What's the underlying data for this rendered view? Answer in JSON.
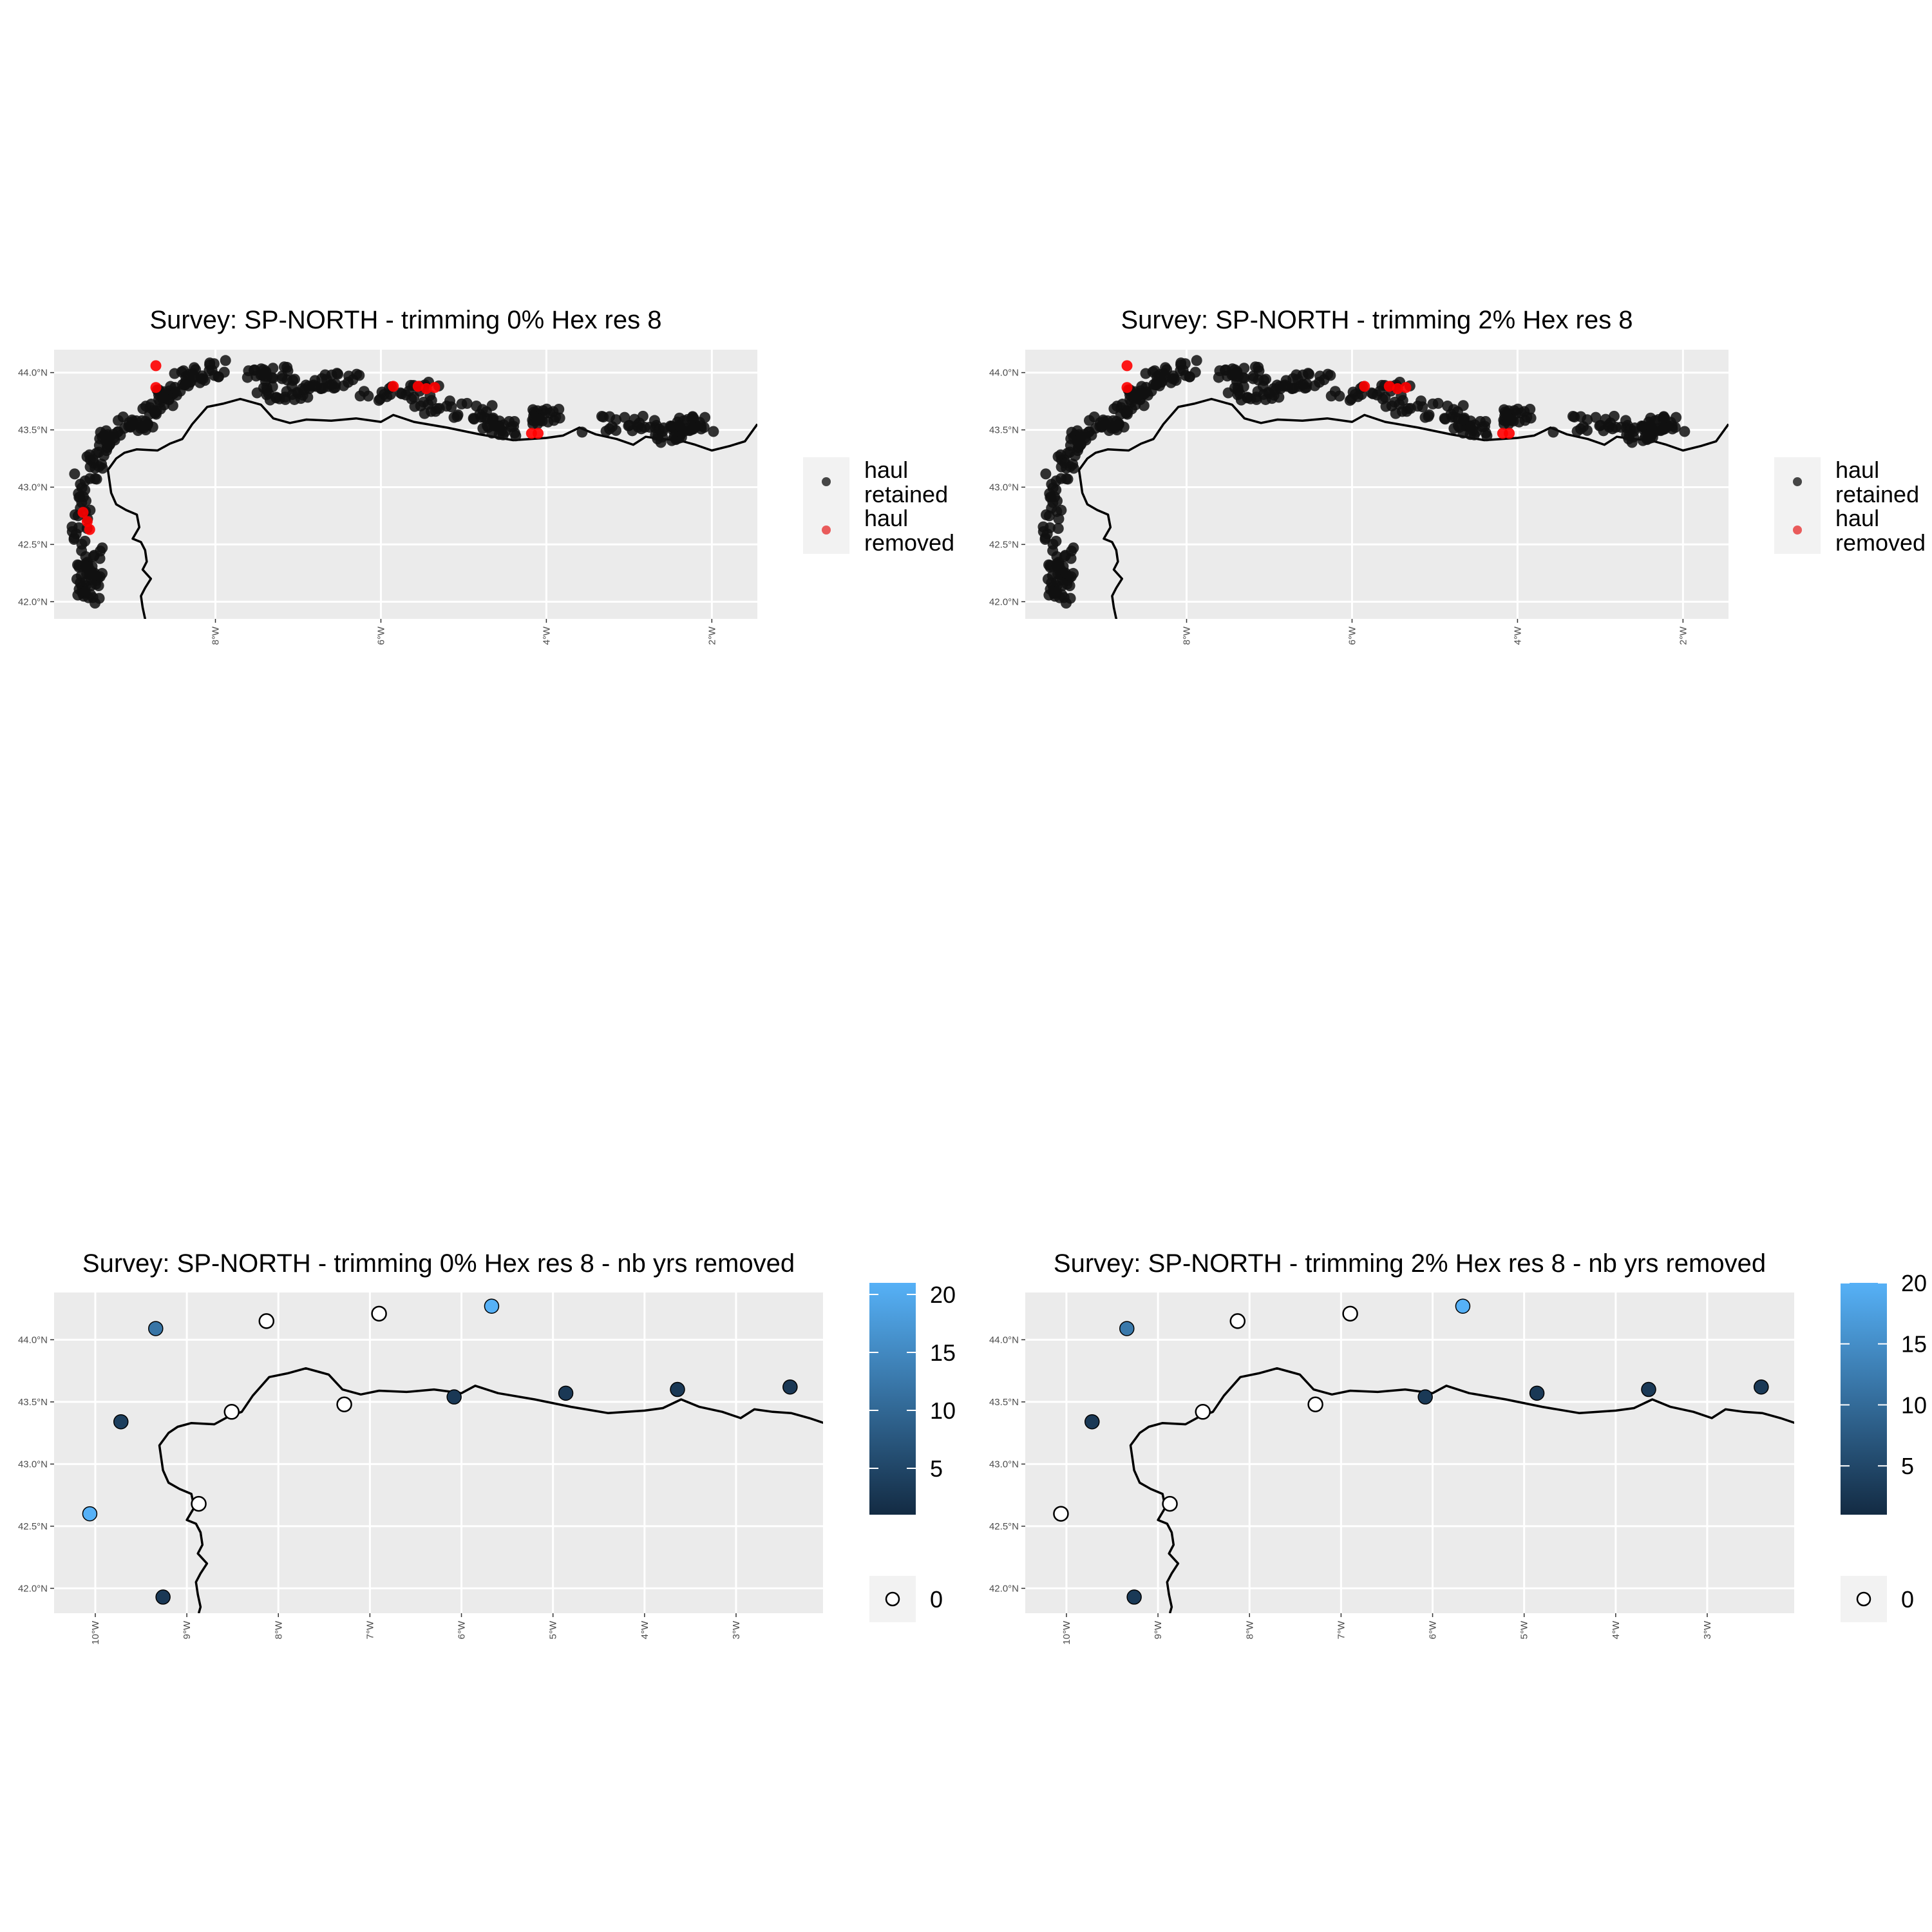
{
  "figure": {
    "panels": [
      {
        "title": "Survey: SP-NORTH - trimming 0% Hex res 8",
        "kind": "hauls",
        "xlim": [
          -9.95,
          -1.45
        ],
        "ylim": [
          41.85,
          44.2
        ],
        "x_ticks": [
          {
            "value": -8,
            "label": "8°W"
          },
          {
            "value": -6,
            "label": "6°W"
          },
          {
            "value": -4,
            "label": "4°W"
          },
          {
            "value": -2,
            "label": "2°W"
          }
        ],
        "y_ticks": [
          {
            "value": 44.0,
            "label": "44.0°N"
          },
          {
            "value": 43.5,
            "label": "43.5°N"
          },
          {
            "value": 43.0,
            "label": "43.0°N"
          },
          {
            "value": 42.5,
            "label": "42.5°N"
          },
          {
            "value": 42.0,
            "label": "42.0°N"
          }
        ],
        "legend": {
          "entries": [
            {
              "label_lines": [
                "haul",
                "retained"
              ],
              "color": "#333333"
            },
            {
              "label_lines": [
                "haul",
                "removed"
              ],
              "color": "#e84a4a"
            }
          ]
        },
        "removed_points": [
          [
            -8.72,
            44.06
          ],
          [
            -8.72,
            43.87
          ],
          [
            -5.85,
            43.88
          ],
          [
            -5.55,
            43.88
          ],
          [
            -5.45,
            43.86
          ],
          [
            -5.35,
            43.87
          ],
          [
            -9.6,
            42.78
          ],
          [
            -9.55,
            42.7
          ],
          [
            -9.52,
            42.63
          ],
          [
            -4.1,
            43.47
          ]
        ],
        "edge_removed": [
          [
            -4.18,
            43.47
          ]
        ]
      },
      {
        "title": "Survey: SP-NORTH - trimming 2% Hex res 8",
        "kind": "hauls",
        "xlim": [
          -9.95,
          -1.45
        ],
        "ylim": [
          41.85,
          44.2
        ],
        "x_ticks": [
          {
            "value": -8,
            "label": "8°W"
          },
          {
            "value": -6,
            "label": "6°W"
          },
          {
            "value": -4,
            "label": "4°W"
          },
          {
            "value": -2,
            "label": "2°W"
          }
        ],
        "y_ticks": [
          {
            "value": 44.0,
            "label": "44.0°N"
          },
          {
            "value": 43.5,
            "label": "43.5°N"
          },
          {
            "value": 43.0,
            "label": "43.0°N"
          },
          {
            "value": 42.5,
            "label": "42.5°N"
          },
          {
            "value": 42.0,
            "label": "42.0°N"
          }
        ],
        "legend": {
          "entries": [
            {
              "label_lines": [
                "haul",
                "retained"
              ],
              "color": "#333333"
            },
            {
              "label_lines": [
                "haul",
                "removed"
              ],
              "color": "#e84a4a"
            }
          ]
        },
        "removed_points": [
          [
            -8.72,
            44.06
          ],
          [
            -8.72,
            43.87
          ],
          [
            -5.85,
            43.88
          ],
          [
            -5.55,
            43.88
          ],
          [
            -5.45,
            43.86
          ],
          [
            -5.35,
            43.87
          ],
          [
            -4.1,
            43.47
          ]
        ],
        "edge_removed": [
          [
            -4.18,
            43.47
          ]
        ]
      },
      {
        "title": "Survey: SP-NORTH - trimming 0% Hex res 8 - nb yrs removed",
        "kind": "hex",
        "xlim": [
          -10.45,
          -2.05
        ],
        "ylim": [
          41.8,
          44.38
        ],
        "x_ticks": [
          {
            "value": -10,
            "label": "10°W"
          },
          {
            "value": -9,
            "label": "9°W"
          },
          {
            "value": -8,
            "label": "8°W"
          },
          {
            "value": -7,
            "label": "7°W"
          },
          {
            "value": -6,
            "label": "6°W"
          },
          {
            "value": -5,
            "label": "5°W"
          },
          {
            "value": -4,
            "label": "4°W"
          },
          {
            "value": -3,
            "label": "3°W"
          }
        ],
        "y_ticks": [
          {
            "value": 44.0,
            "label": "44.0°N"
          },
          {
            "value": 43.5,
            "label": "43.5°N"
          },
          {
            "value": 43.0,
            "label": "43.0°N"
          },
          {
            "value": 42.5,
            "label": "42.5°N"
          },
          {
            "value": 42.0,
            "label": "42.0°N"
          }
        ],
        "colorbar": {
          "range": [
            1,
            21
          ],
          "ticks": [
            {
              "value": 5,
              "label": "5"
            },
            {
              "value": 10,
              "label": "10"
            },
            {
              "value": 15,
              "label": "15"
            },
            {
              "value": 20,
              "label": "20"
            }
          ],
          "zero_label": "0",
          "color_low": "#132b43",
          "color_high": "#56b1f7"
        },
        "hexes": [
          {
            "lon": -9.34,
            "lat": 44.09,
            "n": 12
          },
          {
            "lon": -8.13,
            "lat": 44.15,
            "n": 0
          },
          {
            "lon": -6.9,
            "lat": 44.21,
            "n": 0
          },
          {
            "lon": -5.67,
            "lat": 44.27,
            "n": 21
          },
          {
            "lon": -9.72,
            "lat": 43.34,
            "n": 4
          },
          {
            "lon": -8.51,
            "lat": 43.42,
            "n": 0
          },
          {
            "lon": -7.28,
            "lat": 43.48,
            "n": 0
          },
          {
            "lon": -6.08,
            "lat": 43.54,
            "n": 3
          },
          {
            "lon": -4.86,
            "lat": 43.57,
            "n": 3
          },
          {
            "lon": -3.64,
            "lat": 43.6,
            "n": 3
          },
          {
            "lon": -2.41,
            "lat": 43.62,
            "n": 3
          },
          {
            "lon": -10.06,
            "lat": 42.6,
            "n": 21
          },
          {
            "lon": -8.87,
            "lat": 42.68,
            "n": 0
          },
          {
            "lon": -9.26,
            "lat": 41.93,
            "n": 3
          }
        ]
      },
      {
        "title": "Survey: SP-NORTH - trimming 2% Hex res 8 - nb yrs removed",
        "kind": "hex",
        "xlim": [
          -10.45,
          -2.05
        ],
        "ylim": [
          41.8,
          44.38
        ],
        "x_ticks": [
          {
            "value": -10,
            "label": "10°W"
          },
          {
            "value": -9,
            "label": "9°W"
          },
          {
            "value": -8,
            "label": "8°W"
          },
          {
            "value": -7,
            "label": "7°W"
          },
          {
            "value": -6,
            "label": "6°W"
          },
          {
            "value": -5,
            "label": "5°W"
          },
          {
            "value": -4,
            "label": "4°W"
          },
          {
            "value": -3,
            "label": "3°W"
          }
        ],
        "y_ticks": [
          {
            "value": 44.0,
            "label": "44.0°N"
          },
          {
            "value": 43.5,
            "label": "43.5°N"
          },
          {
            "value": 43.0,
            "label": "43.0°N"
          },
          {
            "value": 42.5,
            "label": "42.5°N"
          },
          {
            "value": 42.0,
            "label": "42.0°N"
          }
        ],
        "colorbar": {
          "range": [
            1,
            20
          ],
          "ticks": [
            {
              "value": 5,
              "label": "5"
            },
            {
              "value": 10,
              "label": "10"
            },
            {
              "value": 15,
              "label": "15"
            },
            {
              "value": 20,
              "label": "20"
            }
          ],
          "zero_label": "0",
          "color_low": "#132b43",
          "color_high": "#56b1f7"
        },
        "hexes": [
          {
            "lon": -9.34,
            "lat": 44.09,
            "n": 12
          },
          {
            "lon": -8.13,
            "lat": 44.15,
            "n": 0
          },
          {
            "lon": -6.9,
            "lat": 44.21,
            "n": 0
          },
          {
            "lon": -5.67,
            "lat": 44.27,
            "n": 20
          },
          {
            "lon": -9.72,
            "lat": 43.34,
            "n": 3
          },
          {
            "lon": -8.51,
            "lat": 43.42,
            "n": 0
          },
          {
            "lon": -7.28,
            "lat": 43.48,
            "n": 0
          },
          {
            "lon": -6.08,
            "lat": 43.54,
            "n": 3
          },
          {
            "lon": -4.86,
            "lat": 43.57,
            "n": 3
          },
          {
            "lon": -3.64,
            "lat": 43.6,
            "n": 3
          },
          {
            "lon": -2.41,
            "lat": 43.62,
            "n": 3
          },
          {
            "lon": -10.06,
            "lat": 42.6,
            "n": 0
          },
          {
            "lon": -8.87,
            "lat": 42.68,
            "n": 0
          },
          {
            "lon": -9.26,
            "lat": 41.93,
            "n": 3
          }
        ]
      }
    ],
    "coastline": [
      [
        -9.3,
        43.15
      ],
      [
        -9.2,
        43.25
      ],
      [
        -9.1,
        43.3
      ],
      [
        -8.95,
        43.33
      ],
      [
        -8.7,
        43.32
      ],
      [
        -8.55,
        43.38
      ],
      [
        -8.4,
        43.42
      ],
      [
        -8.28,
        43.55
      ],
      [
        -8.1,
        43.7
      ],
      [
        -7.9,
        43.73
      ],
      [
        -7.7,
        43.77
      ],
      [
        -7.55,
        43.74
      ],
      [
        -7.45,
        43.72
      ],
      [
        -7.3,
        43.6
      ],
      [
        -7.1,
        43.56
      ],
      [
        -6.9,
        43.59
      ],
      [
        -6.6,
        43.58
      ],
      [
        -6.3,
        43.6
      ],
      [
        -6.0,
        43.57
      ],
      [
        -5.85,
        43.63
      ],
      [
        -5.6,
        43.57
      ],
      [
        -5.2,
        43.52
      ],
      [
        -4.8,
        43.46
      ],
      [
        -4.4,
        43.41
      ],
      [
        -4.0,
        43.43
      ],
      [
        -3.8,
        43.45
      ],
      [
        -3.6,
        43.52
      ],
      [
        -3.4,
        43.46
      ],
      [
        -3.15,
        43.42
      ],
      [
        -2.95,
        43.37
      ],
      [
        -2.8,
        43.44
      ],
      [
        -2.6,
        43.42
      ],
      [
        -2.4,
        43.41
      ],
      [
        -2.2,
        43.37
      ],
      [
        -2.0,
        43.32
      ],
      [
        -1.78,
        43.36
      ],
      [
        -1.6,
        43.4
      ],
      [
        -1.45,
        43.55
      ]
    ],
    "coast_west": [
      [
        -9.3,
        43.15
      ],
      [
        -9.28,
        43.05
      ],
      [
        -9.26,
        42.95
      ],
      [
        -9.2,
        42.85
      ],
      [
        -9.08,
        42.8
      ],
      [
        -8.95,
        42.76
      ],
      [
        -8.92,
        42.65
      ],
      [
        -9.0,
        42.55
      ],
      [
        -8.9,
        42.52
      ],
      [
        -8.85,
        42.45
      ],
      [
        -8.83,
        42.35
      ],
      [
        -8.88,
        42.28
      ],
      [
        -8.78,
        42.2
      ],
      [
        -8.85,
        42.12
      ],
      [
        -8.9,
        42.05
      ],
      [
        -8.88,
        41.95
      ],
      [
        -8.85,
        41.85
      ],
      [
        -8.87,
        41.8
      ]
    ]
  }
}
